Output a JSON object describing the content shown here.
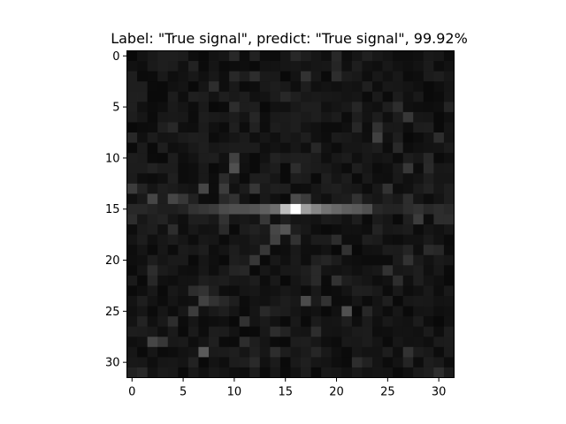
{
  "chart_data": {
    "type": "heatmap",
    "title": "Label: \"True signal\", predict: \"True signal\", 99.92%",
    "xlabel": "",
    "ylabel": "",
    "colormap": "gray",
    "rows": 32,
    "cols": 32,
    "xlim": [
      -0.5,
      31.5
    ],
    "ylim": [
      31.5,
      -0.5
    ],
    "xticks": [
      0,
      5,
      10,
      15,
      20,
      25,
      30
    ],
    "yticks": [
      0,
      5,
      10,
      15,
      20,
      25,
      30
    ],
    "xtick_labels": [
      "0",
      "5",
      "10",
      "15",
      "20",
      "25",
      "30"
    ],
    "ytick_labels": [
      "0",
      "5",
      "10",
      "15",
      "20",
      "25",
      "30"
    ],
    "grid": false,
    "value_range": [
      0,
      255
    ],
    "background_level": 20,
    "row15_profile": [
      [
        0,
        40
      ],
      [
        1,
        40
      ],
      [
        2,
        35
      ],
      [
        3,
        30
      ],
      [
        4,
        30
      ],
      [
        5,
        35
      ],
      [
        6,
        50
      ],
      [
        7,
        55
      ],
      [
        8,
        60
      ],
      [
        9,
        75
      ],
      [
        10,
        80
      ],
      [
        11,
        80
      ],
      [
        12,
        85
      ],
      [
        13,
        95
      ],
      [
        14,
        110
      ],
      [
        15,
        190
      ],
      [
        16,
        255
      ],
      [
        17,
        160
      ],
      [
        18,
        135
      ],
      [
        19,
        115
      ],
      [
        20,
        105
      ],
      [
        21,
        95
      ],
      [
        22,
        90
      ],
      [
        23,
        80
      ],
      [
        24,
        40
      ],
      [
        25,
        35
      ],
      [
        26,
        35
      ],
      [
        27,
        45
      ],
      [
        28,
        50
      ],
      [
        29,
        40
      ],
      [
        30,
        45
      ],
      [
        31,
        40
      ]
    ],
    "highlights": [
      [
        0,
        10,
        40
      ],
      [
        0,
        16,
        40
      ],
      [
        0,
        20,
        40
      ],
      [
        2,
        12,
        45
      ],
      [
        2,
        17,
        50
      ],
      [
        2,
        20,
        45
      ],
      [
        3,
        8,
        45
      ],
      [
        4,
        15,
        40
      ],
      [
        5,
        10,
        45
      ],
      [
        5,
        26,
        45
      ],
      [
        6,
        27,
        55
      ],
      [
        7,
        4,
        40
      ],
      [
        7,
        24,
        50
      ],
      [
        8,
        24,
        65
      ],
      [
        8,
        30,
        45
      ],
      [
        10,
        10,
        65
      ],
      [
        11,
        10,
        80
      ],
      [
        11,
        16,
        45
      ],
      [
        11,
        27,
        55
      ],
      [
        10,
        29,
        40
      ],
      [
        13,
        0,
        60
      ],
      [
        13,
        7,
        70
      ],
      [
        13,
        9,
        60
      ],
      [
        13,
        12,
        55
      ],
      [
        13,
        25,
        50
      ],
      [
        14,
        2,
        70
      ],
      [
        14,
        4,
        70
      ],
      [
        14,
        5,
        55
      ],
      [
        14,
        10,
        50
      ],
      [
        14,
        16,
        75
      ],
      [
        14,
        17,
        60
      ],
      [
        14,
        22,
        50
      ],
      [
        14,
        27,
        45
      ],
      [
        16,
        0,
        45
      ],
      [
        16,
        9,
        50
      ],
      [
        16,
        13,
        55
      ],
      [
        16,
        28,
        60
      ],
      [
        16,
        30,
        45
      ],
      [
        16,
        31,
        45
      ],
      [
        17,
        4,
        45
      ],
      [
        17,
        14,
        70
      ],
      [
        17,
        15,
        85
      ],
      [
        18,
        14,
        65
      ],
      [
        18,
        16,
        50
      ],
      [
        18,
        20,
        45
      ],
      [
        19,
        13,
        55
      ],
      [
        19,
        21,
        50
      ],
      [
        20,
        12,
        55
      ],
      [
        20,
        27,
        50
      ],
      [
        21,
        2,
        45
      ],
      [
        21,
        25,
        50
      ],
      [
        22,
        20,
        50
      ],
      [
        22,
        26,
        45
      ],
      [
        23,
        6,
        45
      ],
      [
        23,
        7,
        50
      ],
      [
        24,
        7,
        65
      ],
      [
        24,
        8,
        50
      ],
      [
        24,
        17,
        75
      ],
      [
        24,
        19,
        50
      ],
      [
        25,
        6,
        60
      ],
      [
        25,
        21,
        80
      ],
      [
        26,
        4,
        45
      ],
      [
        26,
        11,
        50
      ],
      [
        27,
        14,
        45
      ],
      [
        27,
        18,
        45
      ],
      [
        28,
        2,
        70
      ],
      [
        28,
        3,
        55
      ],
      [
        28,
        11,
        45
      ],
      [
        29,
        7,
        90
      ],
      [
        29,
        14,
        45
      ],
      [
        29,
        27,
        50
      ],
      [
        30,
        22,
        45
      ],
      [
        31,
        1,
        40
      ],
      [
        31,
        30,
        45
      ]
    ]
  }
}
